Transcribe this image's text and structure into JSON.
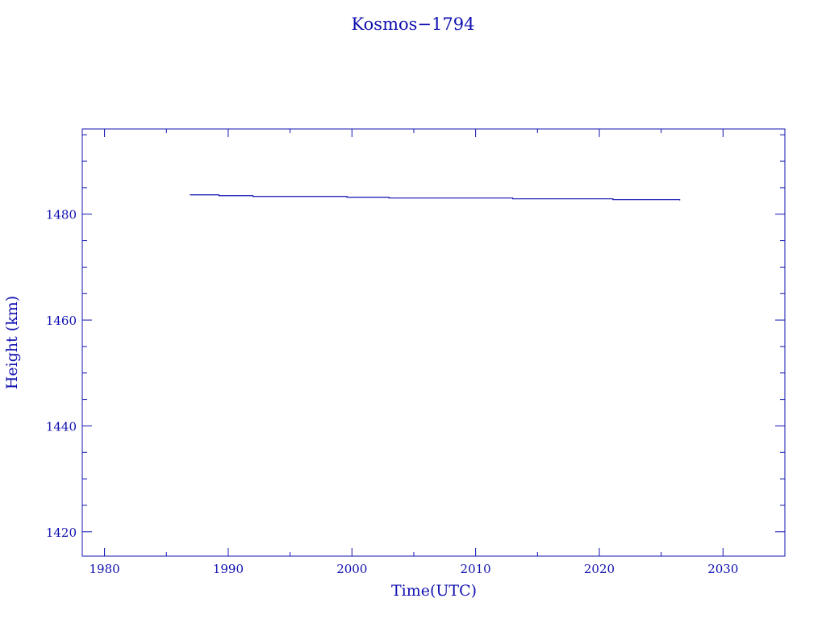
{
  "chart_data": {
    "type": "line",
    "title": "Kosmos−1794",
    "xlabel": "Time(UTC)",
    "ylabel": "Height (km)",
    "xlim": [
      1978.2,
      2035.0
    ],
    "ylim": [
      1415.4,
      1496.1
    ],
    "xticks": [
      1980,
      1990,
      2000,
      2010,
      2020,
      2030
    ],
    "yticks": [
      1420,
      1440,
      1460,
      1480
    ],
    "grid": false,
    "color": "#1010b0",
    "series": [
      {
        "step": true,
        "x": [
          1986.9,
          1989.25,
          1992.0,
          1999.6,
          2003.0,
          2013.0,
          2021.1,
          2026.5
        ],
        "y": [
          1483.65,
          1483.5,
          1483.35,
          1483.2,
          1483.05,
          1482.9,
          1482.75,
          1482.6
        ]
      }
    ]
  }
}
